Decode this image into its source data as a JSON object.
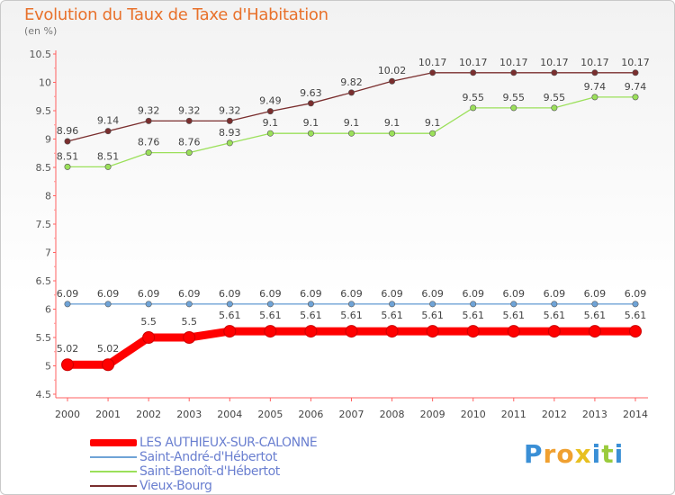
{
  "chart_data": {
    "type": "line",
    "title": "Evolution du Taux de Taxe d'Habitation",
    "ylabel": "(en %)",
    "xlabel": "",
    "x": [
      "2000",
      "2001",
      "2002",
      "2003",
      "2004",
      "2005",
      "2006",
      "2007",
      "2008",
      "2009",
      "2010",
      "2011",
      "2012",
      "2013",
      "2014"
    ],
    "ylim": [
      4.5,
      10.5
    ],
    "yticks": [
      "4.5",
      "5",
      "5.5",
      "6",
      "6.5",
      "7",
      "7.5",
      "8",
      "8.5",
      "9",
      "9.5",
      "10",
      "10.5"
    ],
    "grid": false,
    "legend_position": "bottom-left",
    "series": [
      {
        "name": "LES AUTHIEUX-SUR-CALONNE",
        "color": "#ff0000",
        "values": [
          5.02,
          5.02,
          5.5,
          5.5,
          5.61,
          5.61,
          5.61,
          5.61,
          5.61,
          5.61,
          5.61,
          5.61,
          5.61,
          5.61,
          5.61
        ],
        "labels": [
          "5.02",
          "5.02",
          "5.5",
          "5.5",
          "5.61",
          "5.61",
          "5.61",
          "5.61",
          "5.61",
          "5.61",
          "5.61",
          "5.61",
          "5.61",
          "5.61",
          "5.61"
        ]
      },
      {
        "name": "Saint-André-d'Hébertot",
        "color": "#6fa3d6",
        "values": [
          6.09,
          6.09,
          6.09,
          6.09,
          6.09,
          6.09,
          6.09,
          6.09,
          6.09,
          6.09,
          6.09,
          6.09,
          6.09,
          6.09,
          6.09
        ],
        "labels": [
          "6.09",
          "6.09",
          "6.09",
          "6.09",
          "6.09",
          "6.09",
          "6.09",
          "6.09",
          "6.09",
          "6.09",
          "6.09",
          "6.09",
          "6.09",
          "6.09",
          "6.09"
        ]
      },
      {
        "name": "Saint-Benoît-d'Hébertot",
        "color": "#9be05a",
        "values": [
          8.51,
          8.51,
          8.76,
          8.76,
          8.93,
          9.1,
          9.1,
          9.1,
          9.1,
          9.1,
          9.55,
          9.55,
          9.55,
          9.74,
          9.74
        ],
        "labels": [
          "8.51",
          "8.51",
          "8.76",
          "8.76",
          "8.93",
          "9.1",
          "9.1",
          "9.1",
          "9.1",
          "9.1",
          "9.55",
          "9.55",
          "9.55",
          "9.74",
          "9.74"
        ]
      },
      {
        "name": "Vieux-Bourg",
        "color": "#7a2e2e",
        "values": [
          8.96,
          9.14,
          9.32,
          9.32,
          9.32,
          9.49,
          9.63,
          9.82,
          10.02,
          10.17,
          10.17,
          10.17,
          10.17,
          10.17,
          10.17
        ],
        "labels": [
          "8.96",
          "9.14",
          "9.32",
          "9.32",
          "9.32",
          "9.49",
          "9.63",
          "9.82",
          "10.02",
          "10.17",
          "10.17",
          "10.17",
          "10.17",
          "10.17",
          "10.17"
        ]
      }
    ]
  },
  "brand": {
    "letters": [
      "P",
      "r",
      "o",
      "x",
      "i",
      "t",
      "i"
    ],
    "colors": [
      "#3a8fd6",
      "#f0a030",
      "#f0a030",
      "#e8c020",
      "#3a8fd6",
      "#9acb3c",
      "#3a8fd6"
    ]
  }
}
